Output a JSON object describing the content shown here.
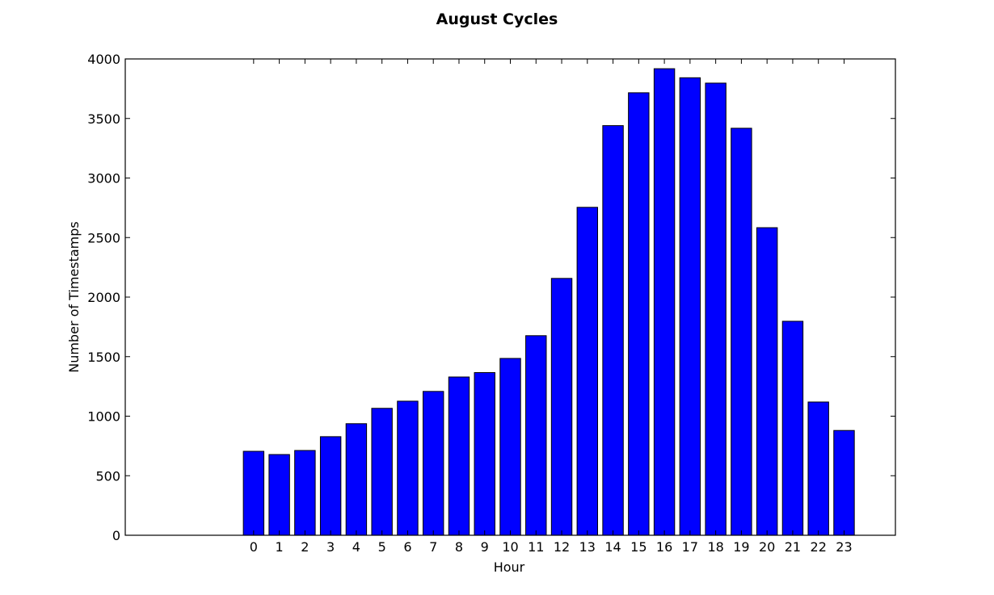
{
  "chart_data": {
    "type": "bar",
    "title": "August Cycles",
    "xlabel": "Hour",
    "ylabel": "Number of Timestamps",
    "categories": [
      "0",
      "1",
      "2",
      "3",
      "4",
      "5",
      "6",
      "7",
      "8",
      "9",
      "10",
      "11",
      "12",
      "13",
      "14",
      "15",
      "16",
      "17",
      "18",
      "19",
      "20",
      "21",
      "22",
      "23"
    ],
    "values": [
      705,
      678,
      712,
      828,
      937,
      1066,
      1126,
      1208,
      1329,
      1366,
      1485,
      1676,
      2157,
      2754,
      3440,
      3716,
      3918,
      3842,
      3797,
      3418,
      2583,
      1797,
      1119,
      880
    ],
    "xlim": [
      -5,
      25
    ],
    "ylim": [
      0,
      4000
    ],
    "yticks": [
      0,
      500,
      1000,
      1500,
      2000,
      2500,
      3000,
      3500,
      4000
    ],
    "grid": false,
    "bar_color": "#0000ff",
    "edge_color": "#000000"
  }
}
